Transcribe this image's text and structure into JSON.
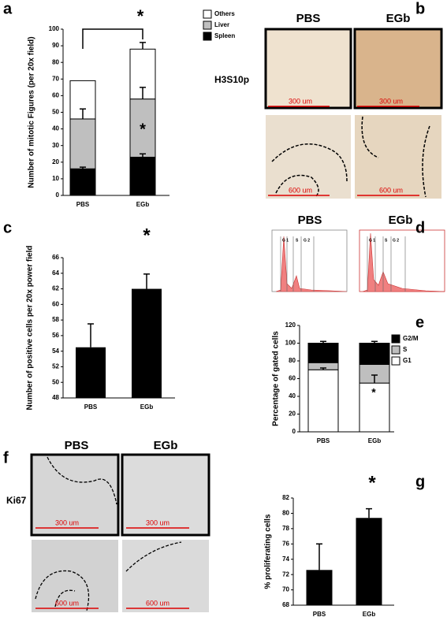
{
  "chart_data": [
    {
      "type": "bar",
      "ylabel": "Number of mitotic Figures (per 20x field)",
      "categories": [
        "PBS",
        "EGb"
      ],
      "series": [
        {
          "name": "Spleen",
          "color": "#000000",
          "values": [
            16,
            23
          ],
          "errors": [
            1,
            2
          ]
        },
        {
          "name": "Liver",
          "color": "#bfbfbf",
          "values": [
            30,
            35
          ],
          "errors": [
            6,
            7
          ]
        },
        {
          "name": "Others",
          "color": "#ffffff",
          "values": [
            23,
            30
          ],
          "errors": [
            null,
            4
          ]
        }
      ],
      "ylim": [
        0,
        100
      ],
      "yticks": [
        0,
        10,
        20,
        30,
        40,
        50,
        60,
        70,
        80,
        90,
        100
      ],
      "annotations": [
        "*",
        "*"
      ]
    },
    {
      "type": "bar",
      "ylabel": "Number of positive cells per 20x power field",
      "categories": [
        "PBS",
        "EGb"
      ],
      "values": [
        54.5,
        62
      ],
      "errors": [
        3,
        1.9
      ],
      "color": "#000000",
      "ylim": [
        48,
        66
      ],
      "yticks": [
        48,
        50,
        52,
        54,
        56,
        58,
        60,
        62,
        64,
        66
      ],
      "annotations": [
        "*"
      ]
    },
    {
      "type": "bar",
      "ylabel": "Percentage of gated cells",
      "categories": [
        "PBS",
        "EGb"
      ],
      "series": [
        {
          "name": "G1",
          "color": "#ffffff",
          "values": [
            70,
            55
          ],
          "errors": [
            2,
            9
          ]
        },
        {
          "name": "S",
          "color": "#bfbfbf",
          "values": [
            8,
            21
          ],
          "errors": [
            2,
            null
          ]
        },
        {
          "name": "G2/M",
          "color": "#000000",
          "values": [
            22,
            24
          ],
          "errors": [
            2,
            2
          ]
        }
      ],
      "ylim": [
        0,
        120
      ],
      "yticks": [
        0,
        20,
        40,
        60,
        80,
        100,
        120
      ],
      "annotations": [
        "*"
      ]
    },
    {
      "type": "bar",
      "ylabel": "% proliferating cells",
      "categories": [
        "PBS",
        "EGb"
      ],
      "values": [
        72.6,
        79.4
      ],
      "errors": [
        3.4,
        1.2
      ],
      "color": "#000000",
      "ylim": [
        68,
        82
      ],
      "yticks": [
        68,
        70,
        72,
        74,
        76,
        78,
        80,
        82
      ],
      "annotations": [
        "*"
      ]
    }
  ],
  "panels": {
    "letters": [
      "a",
      "b",
      "c",
      "d",
      "e",
      "f",
      "g"
    ],
    "b": {
      "groups": [
        "PBS",
        "EGb"
      ],
      "stain": "H3S10p",
      "scale_top": [
        "300 um",
        "300 um"
      ],
      "scale_bottom": [
        "600 um",
        "600 um"
      ]
    },
    "d": {
      "groups": [
        "PBS",
        "EGb"
      ],
      "gates": [
        "G 1",
        "S",
        "G 2"
      ]
    },
    "f": {
      "groups": [
        "PBS",
        "EGb"
      ],
      "stain": "Ki67",
      "scale_top": [
        "300 um",
        "300 um"
      ],
      "scale_bottom": [
        "600 um",
        "600 um"
      ]
    }
  }
}
